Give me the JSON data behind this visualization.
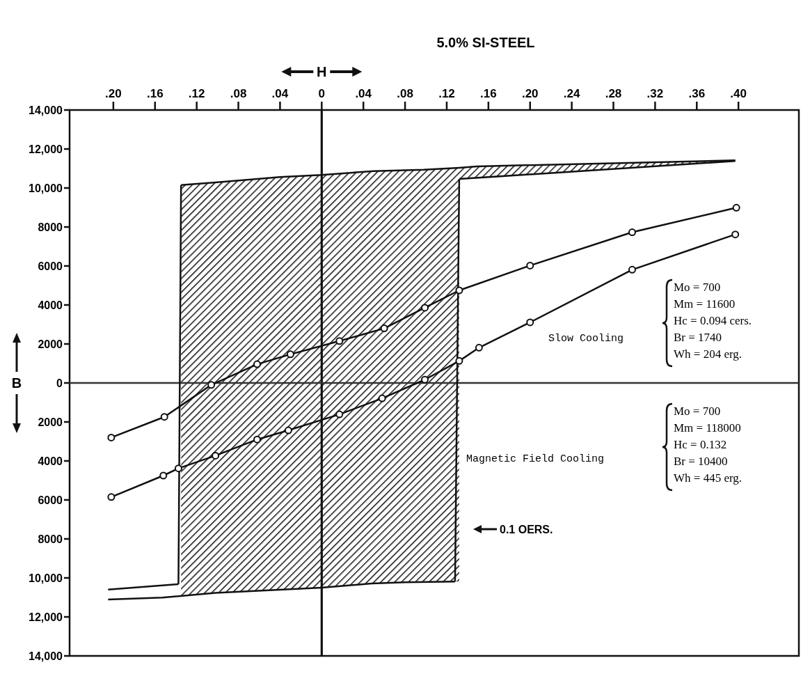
{
  "chart_data": {
    "type": "line",
    "title": "5.0% SI-STEEL",
    "xlabel": "H",
    "ylabel": "B",
    "xlim": [
      -0.242,
      0.458
    ],
    "ylim": [
      -14000,
      14000
    ],
    "xticks": [
      {
        "value": -0.2,
        "label": ".20"
      },
      {
        "value": -0.16,
        "label": ".16"
      },
      {
        "value": -0.12,
        "label": ".12"
      },
      {
        "value": -0.08,
        "label": ".08"
      },
      {
        "value": -0.04,
        "label": ".04"
      },
      0,
      {
        "value": 0.04,
        "label": ".04"
      },
      {
        "value": 0.08,
        "label": ".08"
      },
      {
        "value": 0.12,
        "label": ".12"
      },
      {
        "value": 0.16,
        "label": ".16"
      },
      {
        "value": 0.2,
        "label": ".20"
      },
      {
        "value": 0.24,
        "label": ".24"
      },
      {
        "value": 0.28,
        "label": ".28"
      },
      {
        "value": 0.32,
        "label": ".32"
      },
      {
        "value": 0.36,
        "label": ".36"
      },
      {
        "value": 0.4,
        "label": ".40"
      }
    ],
    "yticks": [
      {
        "value": -14000,
        "label": "14,000"
      },
      {
        "value": -12000,
        "label": "12,000"
      },
      {
        "value": -10000,
        "label": "10,000"
      },
      {
        "value": -8000,
        "label": "8000"
      },
      {
        "value": -6000,
        "label": "6000"
      },
      {
        "value": -4000,
        "label": "4000"
      },
      {
        "value": -2000,
        "label": "2000"
      },
      0,
      {
        "value": 2000,
        "label": "2000"
      },
      {
        "value": 4000,
        "label": "4000"
      },
      {
        "value": 6000,
        "label": "6000"
      },
      {
        "value": 8000,
        "label": "8000"
      },
      {
        "value": 10000,
        "label": "10,000"
      },
      {
        "value": 12000,
        "label": "12,000"
      },
      {
        "value": 14000,
        "label": "14,000"
      }
    ],
    "grid": false,
    "line_style": "solid",
    "series": [
      {
        "color": "#111111",
        "marker": "none",
        "x": [
          -0.135,
          -0.102,
          -0.04,
          0,
          0.05,
          0.098,
          0.132,
          0.132,
          0.149,
          0.397
        ],
        "values": [
          10150,
          10290,
          10560,
          10670,
          10870,
          10940,
          11040,
          11040,
          11110,
          11420
        ],
        "upper": [
          10150,
          10290,
          10560,
          10670,
          10870,
          10940,
          11040,
          11040,
          11110,
          11420
        ],
        "lower": [
          -10900,
          -10770,
          -10580,
          -10500,
          -10290,
          -10210,
          -10190,
          10460,
          10520,
          11380
        ]
      },
      {
        "color": "#111111",
        "marker": "none",
        "x": [
          0.132,
          0.397
        ],
        "values": [
          10460,
          11380
        ]
      },
      {
        "color": "#111111",
        "marker": "none",
        "x": [
          -0.1375,
          -0.135
        ],
        "values": [
          -10320,
          10150
        ]
      },
      {
        "color": "#111111",
        "marker": "none",
        "x": [
          0.128,
          0.132
        ],
        "values": [
          -10190,
          10460
        ]
      },
      {
        "color": "#111111",
        "marker": "none",
        "x": [
          -0.205,
          -0.1375
        ],
        "values": [
          -10600,
          -10320
        ]
      },
      {
        "color": "#111111",
        "marker": "none",
        "x": [
          -0.205,
          -0.153,
          -0.102,
          0,
          0.048,
          0.08,
          0.128
        ],
        "values": [
          -11110,
          -11010,
          -10770,
          -10500,
          -10290,
          -10220,
          -10190
        ]
      },
      {
        "color": "#111111",
        "marker": "circle",
        "x": [
          -0.202,
          -0.151,
          -0.106,
          -0.062,
          -0.03,
          0.017,
          0.06,
          0.099,
          0.132,
          0.2,
          0.298,
          0.398
        ],
        "values": [
          -2800,
          -1740,
          -100,
          960,
          1470,
          2150,
          2800,
          3860,
          4750,
          6020,
          7730,
          8990
        ]
      },
      {
        "color": "#111111",
        "marker": "circle",
        "x": [
          -0.202,
          -0.152,
          -0.1375,
          -0.102,
          -0.062,
          -0.032,
          0.017,
          0.058,
          0.099,
          0.132,
          0.151,
          0.2,
          0.298,
          0.397
        ],
        "values": [
          -5850,
          -4750,
          -4380,
          -3730,
          -2900,
          -2430,
          -1610,
          -790,
          170,
          1130,
          1810,
          3110,
          5810,
          7620
        ]
      }
    ],
    "ref_lines": [
      {
        "axis": "x",
        "value": 0,
        "color": "#111111"
      },
      {
        "axis": "y",
        "value": 0,
        "color": "#333333"
      }
    ],
    "annotations": [
      "0.1 OERS.",
      "Slow Cooling",
      "Mo = 700",
      "Mm = 11600",
      "Hc = 0.094 cers.",
      "Br = 1740",
      "Wh = 204 erg.",
      "Magnetic Field Cooling",
      "Mo = 700",
      "Mm = 118000",
      "Hc = 0.132",
      "Br = 10400",
      "Wh = 445 erg."
    ]
  }
}
